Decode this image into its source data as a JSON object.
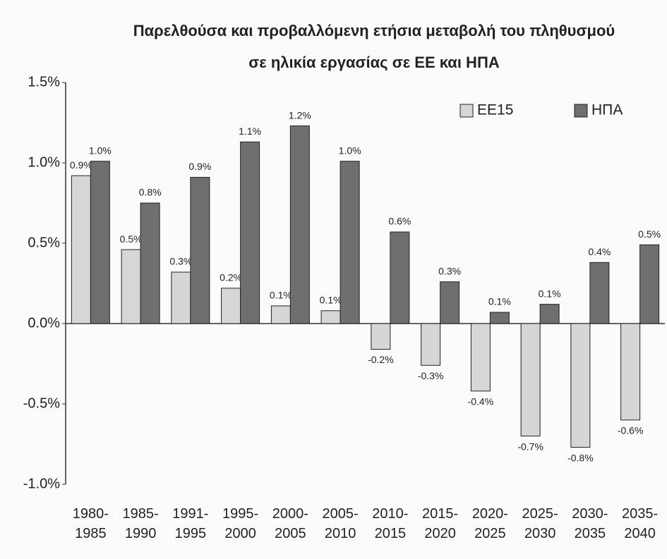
{
  "chart_data": {
    "type": "bar",
    "title": [
      "Παρελθούσα και προβαλλόμενη ετήσια μεταβολή του πληθυσμού",
      "σε ηλικία εργασίας σε ΕΕ και ΗΠΑ"
    ],
    "categories": [
      "1980-1985",
      "1985-1990",
      "1991-1995",
      "1995-2000",
      "2000-2005",
      "2005-2010",
      "2010-2015",
      "2015-2020",
      "2020-2025",
      "2025-2030",
      "2030-2035",
      "2035-2040"
    ],
    "series": [
      {
        "name": "ΕΕ15",
        "color": "#d6d6d6",
        "values": [
          0.92,
          0.46,
          0.32,
          0.22,
          0.11,
          0.08,
          -0.16,
          -0.26,
          -0.42,
          -0.7,
          -0.77,
          -0.6
        ],
        "value_labels": [
          "0.9%",
          "0.5%",
          "0.3%",
          "0.2%",
          "0.1%",
          "0.1%",
          "-0.2%",
          "-0.3%",
          "-0.4%",
          "-0.7%",
          "-0.8%",
          "-0.6%"
        ]
      },
      {
        "name": "ΗΠΑ",
        "color": "#6f6f6f",
        "values": [
          1.01,
          0.75,
          0.91,
          1.13,
          1.23,
          1.01,
          0.57,
          0.26,
          0.07,
          0.12,
          0.38,
          0.49
        ],
        "value_labels": [
          "1.0%",
          "0.8%",
          "0.9%",
          "1.1%",
          "1.2%",
          "1.0%",
          "0.6%",
          "0.3%",
          "0.1%",
          "0.1%",
          "0.4%",
          "0.5%"
        ]
      }
    ],
    "ylim": [
      -1.0,
      1.5
    ],
    "yticks": [
      {
        "value": -1.0,
        "label": "-1.0%"
      },
      {
        "value": -0.5,
        "label": "-0.5%"
      },
      {
        "value": 0.0,
        "label": "0.0%"
      },
      {
        "value": 0.5,
        "label": "0.5%"
      },
      {
        "value": 1.0,
        "label": "1.0%"
      },
      {
        "value": 1.5,
        "label": "1.5%"
      }
    ],
    "legend": "upper right",
    "grid": false
  }
}
